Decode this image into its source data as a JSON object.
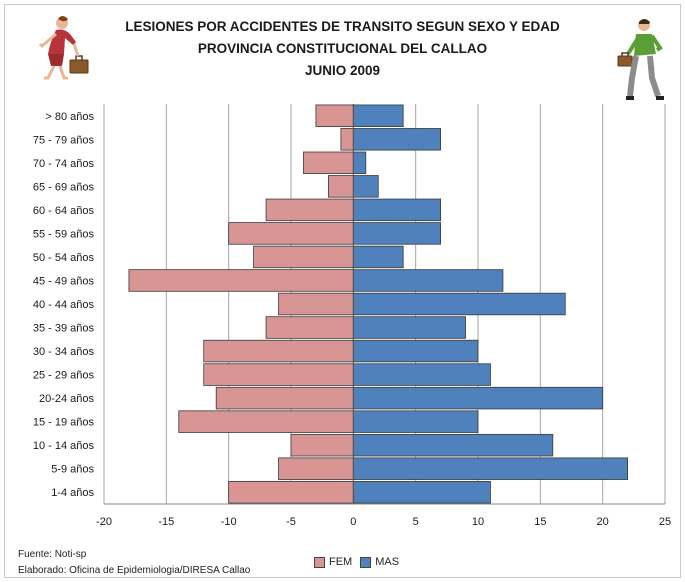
{
  "title_lines": [
    "LESIONES POR ACCIDENTES DE TRANSITO  SEGUN SEXO Y EDAD",
    "PROVINCIA CONSTITUCIONAL DEL CALLAO",
    "JUNIO 2009"
  ],
  "footer": {
    "source": "Fuente: Noti-sp",
    "prepared": "Elaborado: Oficina de Epidemiologia/DIRESA  Callao"
  },
  "icons": {
    "left": "woman-walking-with-briefcase-icon",
    "right": "man-walking-with-briefcase-icon"
  },
  "chart_data": {
    "type": "bar",
    "orientation": "horizontal",
    "title": "LESIONES POR ACCIDENTES DE TRANSITO  SEGUN SEXO Y EDAD / PROVINCIA CONSTITUCIONAL DEL CALLAO / JUNIO 2009",
    "categories": [
      "> 80 años",
      "75 - 79 años",
      "70 - 74 años",
      "65 - 69 años",
      "60 - 64 años",
      "55 - 59 años",
      "50 - 54 años",
      "45 - 49 años",
      "40 - 44 años",
      "35 - 39 años",
      "30 - 34 años",
      "25 - 29 años",
      "20-24 años",
      "15 - 19 años",
      "10 - 14 años",
      "5-9 años",
      "1-4 años"
    ],
    "series": [
      {
        "name": "FEM",
        "color": "#d99594",
        "values": [
          -3,
          -1,
          -4,
          -2,
          -7,
          -10,
          -8,
          -18,
          -6,
          -7,
          -12,
          -12,
          -11,
          -14,
          -5,
          -6,
          -10
        ]
      },
      {
        "name": "MAS",
        "color": "#4f81bd",
        "values": [
          4,
          7,
          1,
          2,
          7,
          7,
          4,
          12,
          17,
          9,
          10,
          11,
          20,
          10,
          16,
          22,
          11
        ]
      }
    ],
    "xlim": [
      -20,
      25
    ],
    "xticks": [
      -20,
      -15,
      -10,
      -5,
      0,
      5,
      10,
      15,
      20,
      25
    ],
    "grid": true,
    "legend": "bottom"
  }
}
